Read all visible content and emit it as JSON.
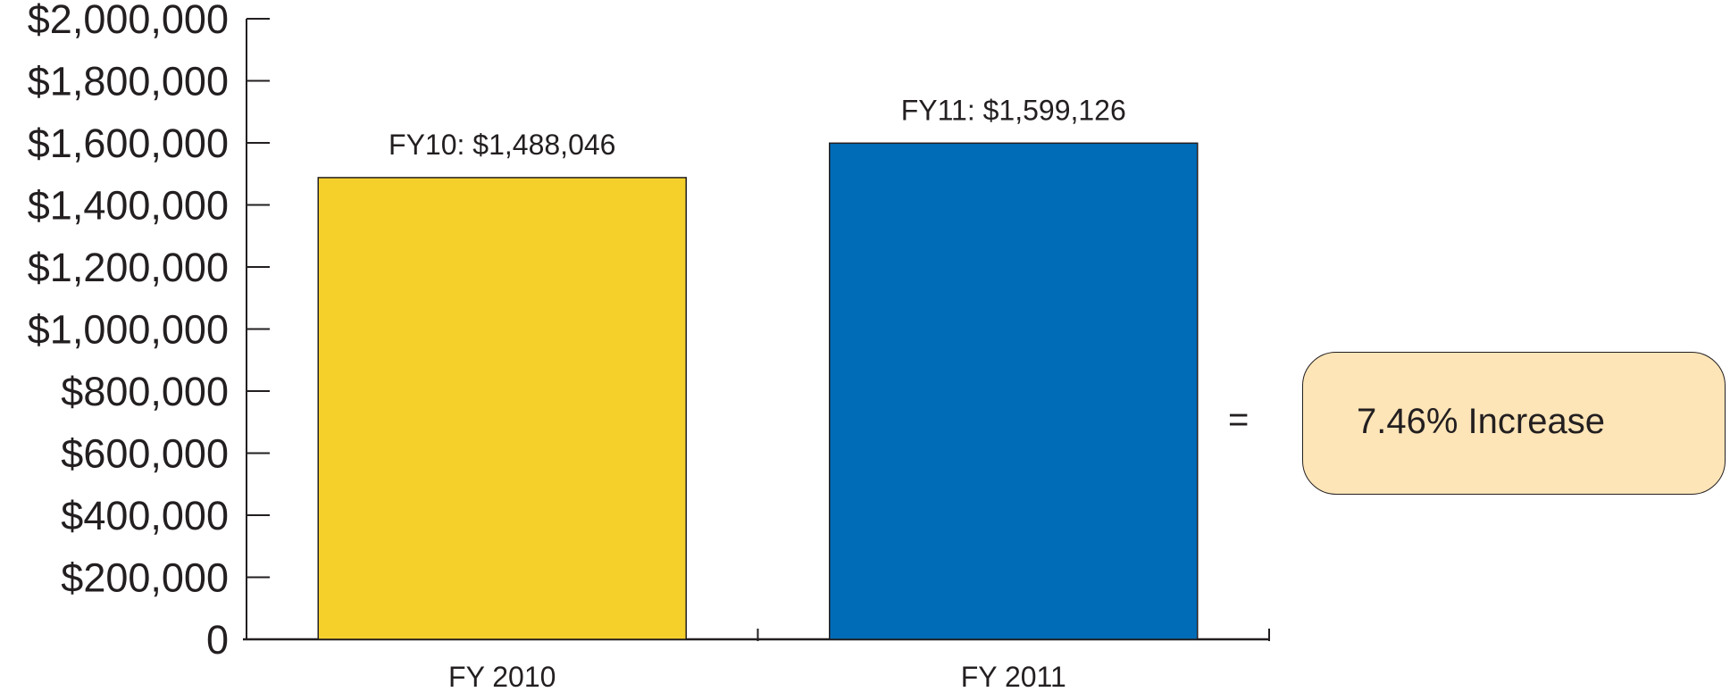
{
  "chart_data": {
    "type": "bar",
    "categories": [
      "FY 2010",
      "FY 2011"
    ],
    "values": [
      1488046,
      1599126
    ],
    "data_labels": [
      "FY10: $1,488,046",
      "FY11: $1,599,126"
    ],
    "colors": [
      "#f5d02b",
      "#006bb6"
    ],
    "ylim": [
      0,
      2000000
    ],
    "yticks": [
      0,
      200000,
      400000,
      600000,
      800000,
      1000000,
      1200000,
      1400000,
      1600000,
      1800000,
      2000000
    ],
    "ytick_labels": [
      "0",
      "$200,000",
      "$400,000",
      "$600,000",
      "$800,000",
      "$1,000,000",
      "$1,200,000",
      "$1,400,000",
      "$1,600,000",
      "$1,800,000",
      "$2,000,000"
    ],
    "title": "",
    "xlabel": "",
    "ylabel": "",
    "grid": false,
    "legend": null
  },
  "annotation": {
    "equals": "=",
    "text": "7.46% Increase",
    "color": "#fde5b8"
  }
}
